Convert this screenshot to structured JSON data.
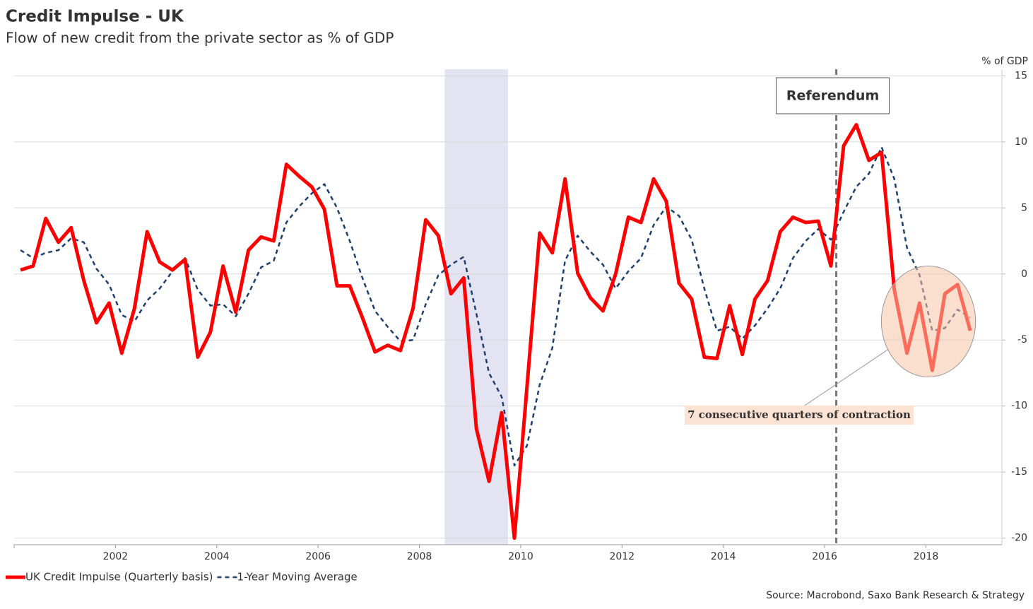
{
  "chart_data": {
    "type": "line",
    "title": "Credit Impulse - UK",
    "subtitle": "Flow of new credit from the private sector as % of GDP",
    "y_axis_label": "% of GDP",
    "source": "Source: Macrobond, Saxo Bank Research & Strategy",
    "x": [
      2000.125,
      2000.375,
      2000.625,
      2000.875,
      2001.125,
      2001.375,
      2001.625,
      2001.875,
      2002.125,
      2002.375,
      2002.625,
      2002.875,
      2003.125,
      2003.375,
      2003.625,
      2003.875,
      2004.125,
      2004.375,
      2004.625,
      2004.875,
      2005.125,
      2005.375,
      2005.625,
      2005.875,
      2006.125,
      2006.375,
      2006.625,
      2006.875,
      2007.125,
      2007.375,
      2007.625,
      2007.875,
      2008.125,
      2008.375,
      2008.625,
      2008.875,
      2009.125,
      2009.375,
      2009.625,
      2009.875,
      2010.125,
      2010.375,
      2010.625,
      2010.875,
      2011.125,
      2011.375,
      2011.625,
      2011.875,
      2012.125,
      2012.375,
      2012.625,
      2012.875,
      2013.125,
      2013.375,
      2013.625,
      2013.875,
      2014.125,
      2014.375,
      2014.625,
      2014.875,
      2015.125,
      2015.375,
      2015.625,
      2015.875,
      2016.125,
      2016.375,
      2016.625,
      2016.875,
      2017.125,
      2017.375,
      2017.625,
      2017.875,
      2018.125,
      2018.375,
      2018.625,
      2018.875
    ],
    "series": [
      {
        "name": "UK Credit Impulse (Quarterly basis)",
        "color": "#ff0000",
        "dash": false,
        "values": [
          0.3,
          0.6,
          4.2,
          2.4,
          3.5,
          -0.5,
          -3.7,
          -2.2,
          -6.0,
          -2.6,
          3.2,
          0.9,
          0.3,
          1.1,
          -6.3,
          -4.4,
          0.6,
          -2.9,
          1.8,
          2.8,
          2.5,
          8.3,
          7.4,
          6.6,
          4.9,
          -0.9,
          -0.9,
          -3.3,
          -5.9,
          -5.4,
          -5.8,
          -2.6,
          4.1,
          2.9,
          -1.5,
          -0.3,
          -11.7,
          -15.7,
          -10.5,
          -20.0,
          -8.5,
          3.1,
          1.6,
          7.2,
          0.05,
          -1.8,
          -2.8,
          0.0,
          4.3,
          3.9,
          7.2,
          5.5,
          -0.7,
          -1.9,
          -6.3,
          -6.4,
          -2.4,
          -6.1,
          -1.9,
          -0.5,
          3.2,
          4.3,
          3.9,
          4.0,
          0.6,
          9.7,
          11.3,
          8.6,
          9.2,
          -1.2,
          -6.0,
          -2.2,
          -7.3,
          -1.5,
          -0.8,
          -4.3
        ]
      },
      {
        "name": "1-Year Moving Average",
        "color": "#1f3f6e",
        "dash": true,
        "values": [
          1.8,
          1.2,
          1.6,
          1.8,
          2.7,
          2.4,
          0.4,
          -0.8,
          -3.1,
          -3.6,
          -2.0,
          -1.1,
          0.2,
          1.2,
          -1.2,
          -2.4,
          -2.3,
          -3.2,
          -1.5,
          0.5,
          1.0,
          3.9,
          5.1,
          6.1,
          6.8,
          5.0,
          2.5,
          -0.3,
          -2.8,
          -4.0,
          -5.1,
          -5.0,
          -2.3,
          -0.1,
          0.7,
          1.3,
          -3.0,
          -7.5,
          -9.3,
          -14.5,
          -13.0,
          -8.4,
          -5.6,
          1.0,
          2.9,
          1.7,
          0.7,
          -1.1,
          0.2,
          1.2,
          3.7,
          5.1,
          4.4,
          2.6,
          -1.1,
          -4.3,
          -4.0,
          -4.9,
          -3.9,
          -2.6,
          -1.1,
          1.2,
          2.5,
          3.4,
          2.6,
          4.7,
          6.6,
          7.6,
          9.6,
          7.2,
          2.0,
          -0.1,
          -4.3,
          -4.1,
          -2.7,
          -3.3
        ]
      }
    ],
    "xlim": [
      2000,
      2019.5
    ],
    "xticks": [
      2002,
      2004,
      2006,
      2008,
      2010,
      2012,
      2014,
      2016,
      2018
    ],
    "ylim": [
      -20.5,
      15.5
    ],
    "yticks": [
      -20,
      -15,
      -10,
      -5,
      0,
      5,
      10,
      15
    ],
    "grid": true,
    "legend": "bottom-left",
    "recession_band": [
      2008.5,
      2009.75
    ],
    "reference_line": {
      "x": 2016.23,
      "label": "Referendum"
    },
    "highlight": {
      "label": "7 consecutive quarters of contraction",
      "x": 2018.05,
      "y": -3.6,
      "rx": 0.93,
      "ry": 4.2
    }
  }
}
